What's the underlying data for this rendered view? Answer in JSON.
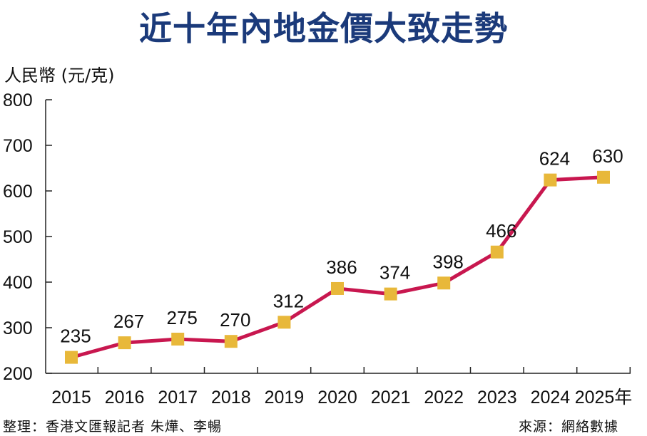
{
  "chart_data": {
    "type": "line",
    "title": "近十年內地金價大致走勢",
    "ylabel": "人民幣 (元/克)",
    "xlabel": "",
    "x_unit_suffix": "年",
    "categories": [
      "2015",
      "2016",
      "2017",
      "2018",
      "2019",
      "2020",
      "2021",
      "2022",
      "2023",
      "2024",
      "2025"
    ],
    "values": [
      235,
      267,
      275,
      270,
      312,
      386,
      374,
      398,
      466,
      624,
      630
    ],
    "ylim": [
      200,
      800
    ],
    "yticks": [
      200,
      300,
      400,
      500,
      600,
      700,
      800
    ],
    "grid": false,
    "colors": {
      "line": "#c8174f",
      "marker": "#e8b83a",
      "title": "#1b3a7a"
    }
  },
  "footer": {
    "credit": "整理：香港文匯報記者 朱燁、李暢",
    "source": "來源：網絡數據"
  }
}
